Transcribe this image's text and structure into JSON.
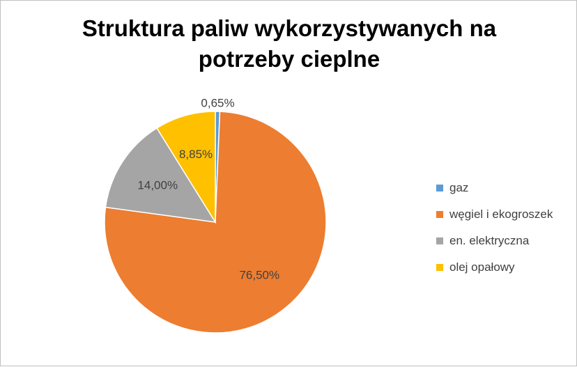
{
  "chart_data": {
    "type": "pie",
    "title": "Struktura paliw wykorzystywanych na potrzeby cieplne",
    "title_lines": [
      "Struktura paliw wykorzystywanych na",
      "potrzeby cieplne"
    ],
    "categories": [
      "gaz",
      "węgiel i ekogroszek",
      "en. elektryczna",
      "olej opałowy"
    ],
    "values": [
      0.65,
      76.5,
      14.0,
      8.85
    ],
    "labels": [
      "0,65%",
      "76,50%",
      "14,00%",
      "8,85%"
    ],
    "colors": [
      "#5B9BD5",
      "#ED7D31",
      "#A5A5A5",
      "#FFC000"
    ],
    "legend_position": "right"
  }
}
